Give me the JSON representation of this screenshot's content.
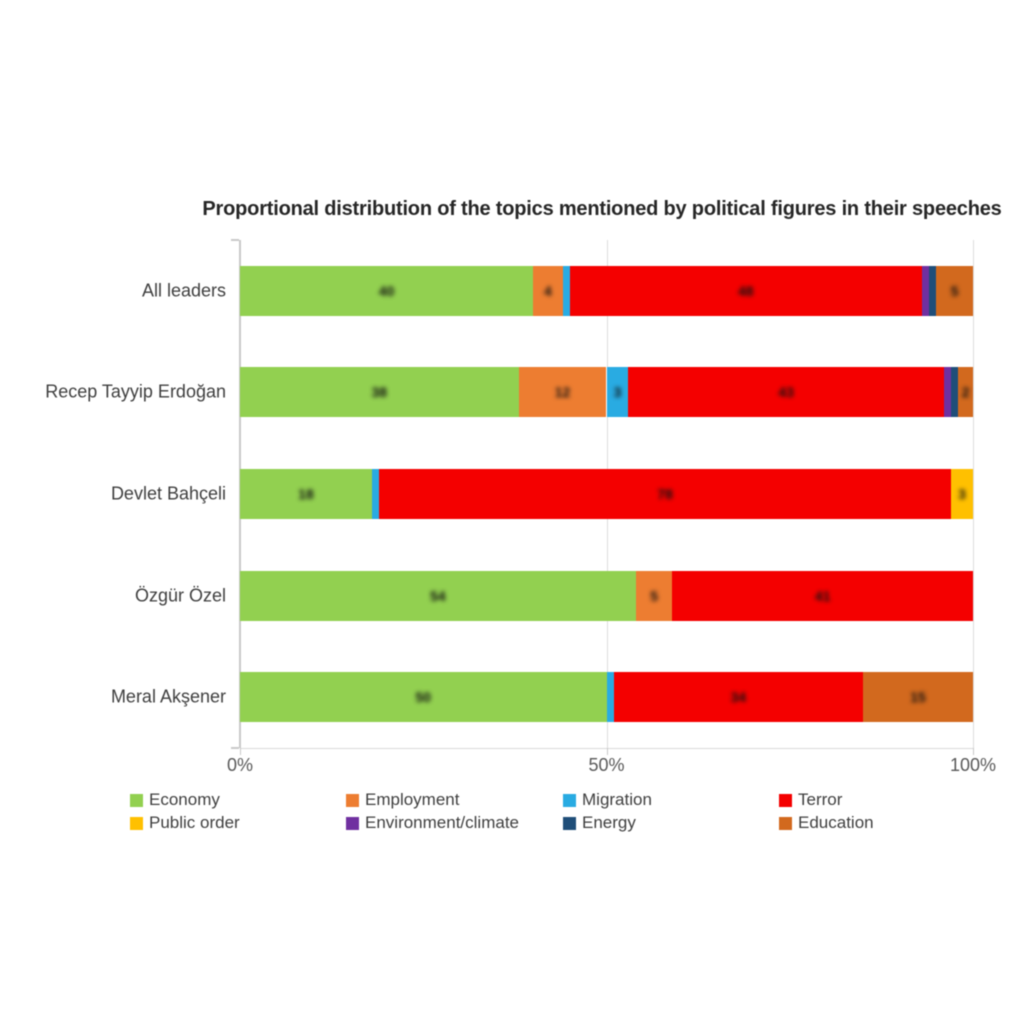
{
  "title": "Proportional distribution of the topics mentioned by political figures in their speeches",
  "chart_data": {
    "type": "bar",
    "orientation": "horizontal",
    "stacked": true,
    "unit": "%",
    "title": "Proportional distribution of the topics mentioned by political figures in their speeches",
    "categories": [
      "All leaders",
      "Recep Tayyip Erdoğan",
      "Devlet Bahçeli",
      "Özgür Özel",
      "Meral Akşener"
    ],
    "series": [
      {
        "name": "Economy",
        "color": "#92D050",
        "values": [
          40,
          38,
          18,
          54,
          50
        ]
      },
      {
        "name": "Employment",
        "color": "#ED7D31",
        "values": [
          4,
          12,
          0,
          5,
          0
        ]
      },
      {
        "name": "Migration",
        "color": "#29ABE2",
        "values": [
          1,
          3,
          1,
          0,
          1
        ]
      },
      {
        "name": "Terror",
        "color": "#F40000",
        "values": [
          48,
          43,
          78,
          41,
          34
        ]
      },
      {
        "name": "Public order",
        "color": "#FFC000",
        "values": [
          0,
          0,
          3,
          0,
          0
        ]
      },
      {
        "name": "Environment/climate",
        "color": "#7030A0",
        "values": [
          1,
          1,
          0,
          0,
          0
        ]
      },
      {
        "name": "Energy",
        "color": "#1F4E79",
        "values": [
          1,
          1,
          0,
          0,
          0
        ]
      },
      {
        "name": "Education",
        "color": "#D2691E",
        "values": [
          5,
          2,
          0,
          0,
          15
        ]
      }
    ],
    "xlabel": "",
    "ylabel": "",
    "xlim": [
      0,
      100
    ],
    "x_ticks": [
      {
        "label": "0%",
        "value": 0
      },
      {
        "label": "50%",
        "value": 50
      },
      {
        "label": "100%",
        "value": 100
      }
    ],
    "grid": "vertical gridlines at 50% and 100%",
    "legend_position": "bottom",
    "legend_rows": 2,
    "bar_labels": "segment values printed on bars (blurred/illegible in source image)"
  }
}
